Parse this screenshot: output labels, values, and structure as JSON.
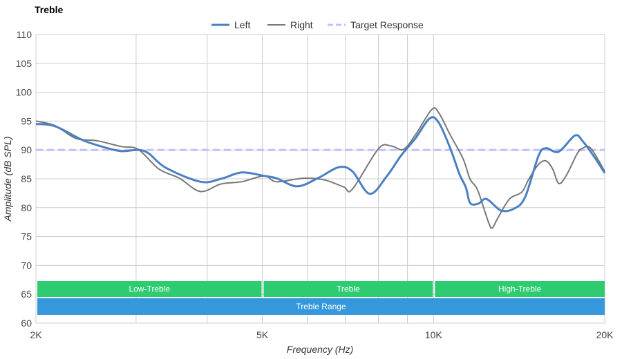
{
  "chart_data": {
    "type": "line",
    "title": "Treble",
    "xlabel": "Frequency (Hz)",
    "ylabel": "Amplitude (dB SPL)",
    "x_scale": "log",
    "xlim": [
      2000,
      20000
    ],
    "ylim": [
      60,
      110
    ],
    "grid": true,
    "legend_placement": "top-center",
    "x_ticks": [
      {
        "value": 2000,
        "label": "2K"
      },
      {
        "value": 5000,
        "label": "5K"
      },
      {
        "value": 10000,
        "label": "10K"
      },
      {
        "value": 20000,
        "label": "20K"
      }
    ],
    "x_gridlines": [
      2000,
      3000,
      4000,
      5000,
      6000,
      7000,
      8000,
      9000,
      10000,
      20000
    ],
    "y_ticks": [
      60,
      65,
      70,
      75,
      80,
      85,
      90,
      95,
      100,
      105,
      110
    ],
    "series": [
      {
        "name": "Left",
        "color": "#4a7fc1",
        "style": "solid",
        "x": [
          2000,
          2162,
          2418,
          2630,
          2822,
          3025,
          3157,
          3385,
          3892,
          4230,
          4603,
          5040,
          5294,
          5757,
          6261,
          6811,
          7200,
          7725,
          8285,
          8765,
          9292,
          9853,
          10220,
          10700,
          11110,
          11400,
          11600,
          11990,
          12400,
          13150,
          13900,
          14500,
          15300,
          15770,
          16600,
          17730,
          18300,
          19200,
          20000
        ],
        "y": [
          94.5,
          94.1,
          91.7,
          90.5,
          89.8,
          90,
          89.4,
          86.9,
          84.5,
          85,
          86.1,
          85.5,
          85.1,
          83.7,
          85.1,
          87,
          86.3,
          82.4,
          85.5,
          89,
          92,
          95.5,
          94.7,
          90.3,
          85.8,
          83.5,
          80.8,
          80.7,
          81.5,
          79.5,
          79.9,
          81.9,
          89,
          90.3,
          89.7,
          92.5,
          91.5,
          88.7,
          86
        ]
      },
      {
        "name": "Right",
        "color": "#777777",
        "style": "solid",
        "x": [
          2000,
          2162,
          2350,
          2560,
          2822,
          3025,
          3290,
          3575,
          3892,
          4230,
          4603,
          5040,
          5294,
          5917,
          6437,
          6950,
          7200,
          8000,
          8420,
          8850,
          9292,
          9930,
          10220,
          10700,
          11270,
          11600,
          11950,
          12500,
          12690,
          12940,
          13600,
          14300,
          14700,
          15300,
          15770,
          16200,
          16600,
          17100,
          17900,
          18300,
          18900,
          20000
        ],
        "y": [
          95,
          94.2,
          92,
          91.6,
          90.6,
          90.1,
          86.7,
          85.1,
          82.8,
          84.1,
          84.5,
          85.5,
          84.5,
          85.1,
          84.8,
          83.6,
          83.2,
          90.2,
          90.7,
          90.1,
          92.6,
          97,
          96.4,
          92.6,
          88.5,
          84.9,
          83.1,
          77.4,
          76.5,
          78,
          81.5,
          82.7,
          84.9,
          87.5,
          88.1,
          86.7,
          84.2,
          85.5,
          89.4,
          90.3,
          90.3,
          86.3
        ]
      },
      {
        "name": "Target Response",
        "color": "#c0c0ff",
        "style": "dashed",
        "x": [
          2000,
          20000
        ],
        "y": [
          90,
          90
        ]
      }
    ],
    "bands": [
      {
        "label": "Low-Treble",
        "from": 2000,
        "to": 5000,
        "color": "#2ecc71",
        "row": 0
      },
      {
        "label": "Treble",
        "from": 5000,
        "to": 10000,
        "color": "#2ecc71",
        "row": 0
      },
      {
        "label": "High-Treble",
        "from": 10000,
        "to": 20000,
        "color": "#2ecc71",
        "row": 0
      },
      {
        "label": "Treble Range",
        "from": 2000,
        "to": 20000,
        "color": "#3498db",
        "row": 1
      }
    ]
  }
}
